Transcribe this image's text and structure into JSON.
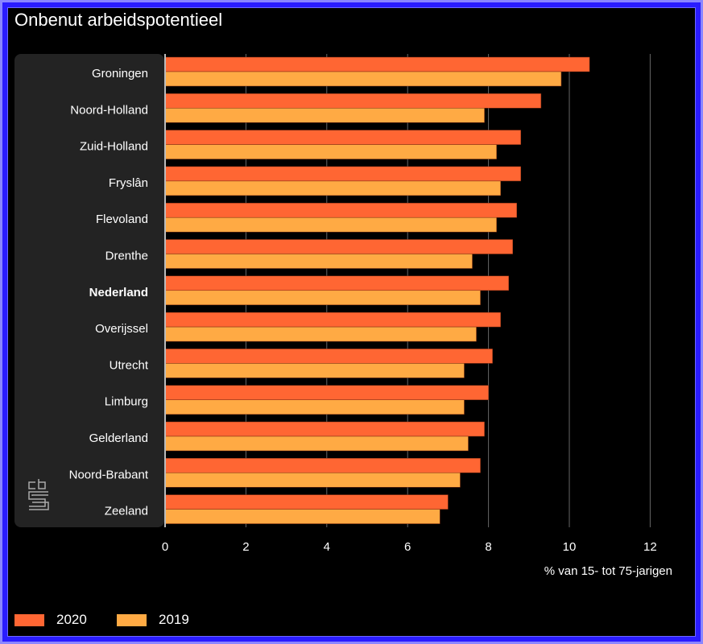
{
  "title": "Onbenut arbeidspotentieel",
  "chart_data": {
    "type": "bar",
    "orientation": "horizontal",
    "title": "Onbenut arbeidspotentieel",
    "xlabel": "% van 15- tot 75-jarigen",
    "ylabel": "",
    "xlim": [
      0,
      12
    ],
    "xticks": [
      "0",
      "2",
      "4",
      "6",
      "8",
      "10",
      "12"
    ],
    "grid": true,
    "legend_position": "bottom-left",
    "categories": [
      "Groningen",
      "Noord-Holland",
      "Zuid-Holland",
      "Fryslân",
      "Flevoland",
      "Drenthe",
      "Nederland",
      "Overijssel",
      "Utrecht",
      "Limburg",
      "Gelderland",
      "Noord-Brabant",
      "Zeeland"
    ],
    "bold_category": "Nederland",
    "series": [
      {
        "name": "2020",
        "color": "#ff6633",
        "values": [
          10.5,
          9.3,
          8.8,
          8.8,
          8.7,
          8.6,
          8.5,
          8.3,
          8.1,
          8.0,
          7.9,
          7.8,
          7.0
        ]
      },
      {
        "name": "2019",
        "color": "#ffaa44",
        "values": [
          9.8,
          7.9,
          8.2,
          8.3,
          8.2,
          7.6,
          7.8,
          7.7,
          7.4,
          7.4,
          7.5,
          7.3,
          6.8
        ]
      }
    ]
  },
  "legend": {
    "items": [
      "2020",
      "2019"
    ]
  }
}
